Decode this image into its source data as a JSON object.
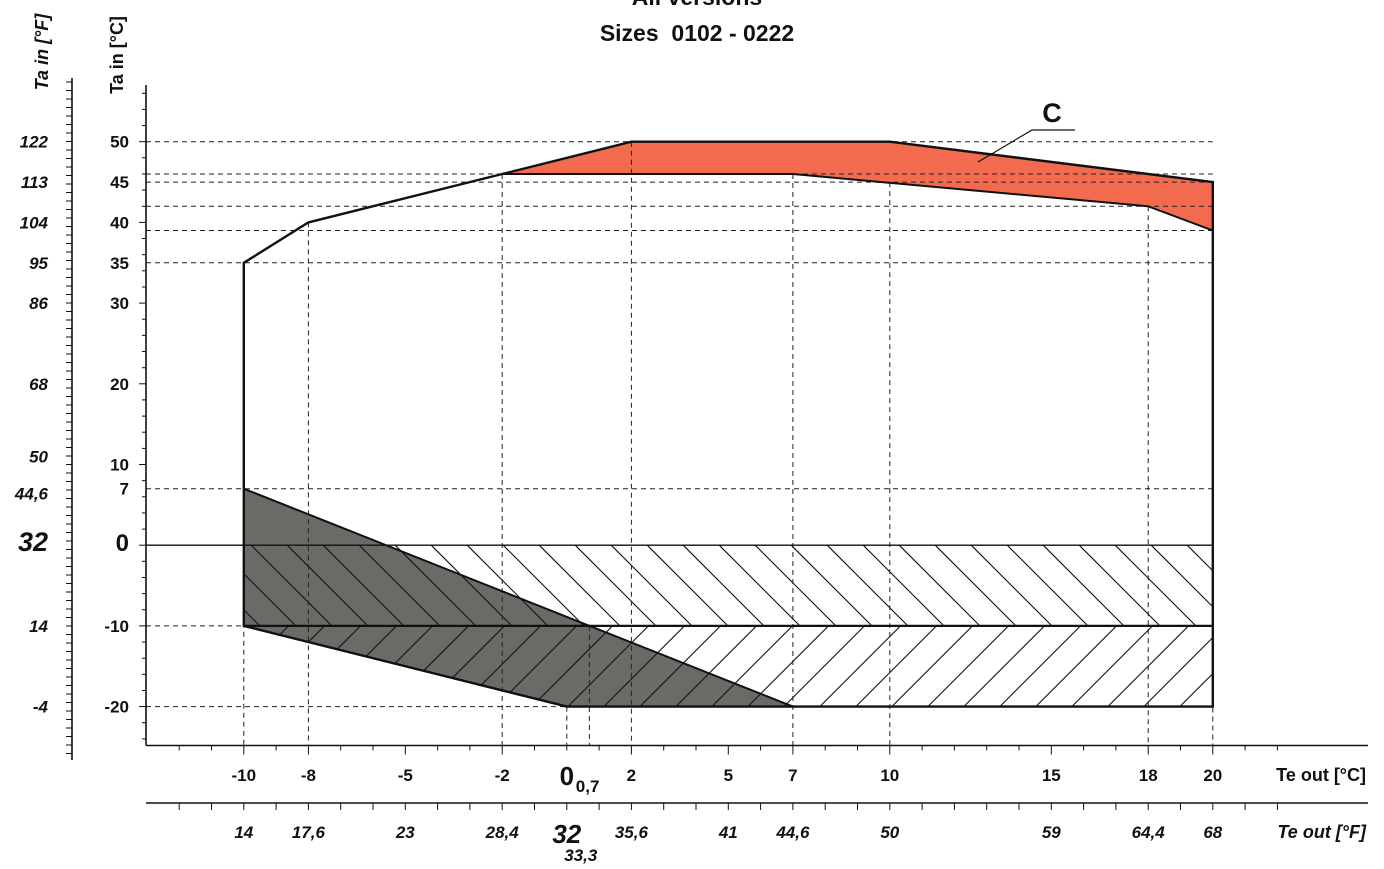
{
  "chart_data": {
    "type": "area",
    "title_line1": "All versions",
    "title_line2": "Sizes  0102 - 0222",
    "y_axis_c_label": "Ta in [°C]",
    "y_axis_f_label": "Ta in [°F]",
    "x_axis_c_label": "Te out [°C]",
    "x_axis_f_label": "Te out [°F]",
    "x_c_ticks": [
      "-10",
      "-8",
      "-5",
      "-2",
      "2",
      "5",
      "7",
      "10",
      "15",
      "18",
      "20"
    ],
    "x_c_ticks_values": [
      -10,
      -8,
      -5,
      -2,
      2,
      5,
      7,
      10,
      15,
      18,
      20
    ],
    "x_c_zero_label": "0",
    "x_c_zero_sub": "0,7",
    "x_f_ticks": [
      "14",
      "17,6",
      "23",
      "28,4",
      "35,6",
      "41",
      "44,6",
      "50",
      "59",
      "64,4",
      "68"
    ],
    "x_f_ticks_values": [
      -10,
      -8,
      -5,
      -2,
      2,
      5,
      7,
      10,
      15,
      18,
      20
    ],
    "x_f_32_label": "32",
    "x_f_333_label": "33,3",
    "y_c_ticks": [
      "50",
      "45",
      "40",
      "35",
      "30",
      "20",
      "10",
      "7",
      "0",
      "-10",
      "-20"
    ],
    "y_c_ticks_values": [
      50,
      45,
      40,
      35,
      30,
      20,
      10,
      7,
      0,
      -10,
      -20
    ],
    "y_f_ticks": [
      "122",
      "113",
      "104",
      "95",
      "86",
      "68",
      "50",
      "44,6",
      "32",
      "14",
      "-4"
    ],
    "y_f_ticks_values": [
      50,
      45,
      40,
      35,
      30,
      20,
      10,
      7,
      0,
      -10,
      -20
    ],
    "xlim": [
      -13,
      23
    ],
    "ylim": [
      -25,
      58
    ],
    "envelope_outline": [
      [
        -10,
        35
      ],
      [
        -8,
        40
      ],
      [
        -2,
        46
      ],
      [
        2,
        50
      ],
      [
        10,
        50
      ],
      [
        20,
        45
      ],
      [
        20,
        -20
      ],
      [
        7,
        -20
      ],
      [
        0,
        -20
      ],
      [
        -10,
        -10
      ],
      [
        -10,
        35
      ]
    ],
    "region_c_label": "C",
    "region_c_color": "#f26b4f",
    "region_c_polygon": [
      [
        -2,
        46
      ],
      [
        2,
        50
      ],
      [
        10,
        50
      ],
      [
        20,
        45
      ],
      [
        20,
        39
      ],
      [
        18,
        42
      ],
      [
        7,
        46
      ]
    ],
    "gray_region_color": "#6b6a66",
    "gray_region_polygon": [
      [
        -10,
        7
      ],
      [
        7,
        -20
      ],
      [
        0,
        -20
      ],
      [
        -10,
        -10
      ]
    ],
    "hatch_band_upper": [
      0,
      -10
    ],
    "hatch_band_lower": [
      -10,
      -20
    ],
    "hatch_lower_start_x": 0.7,
    "grid_dashed": true,
    "guide_lines": [
      {
        "x": -10,
        "y": 35
      },
      {
        "x": -8,
        "y": 40
      },
      {
        "x": -2,
        "y": 46
      },
      {
        "x": 2,
        "y": 50
      },
      {
        "x": 7,
        "y": 46
      },
      {
        "x": 10,
        "y": 45
      },
      {
        "x": 18,
        "y": 42
      },
      {
        "x": 20,
        "y": 39
      },
      {
        "x": 0,
        "y": -20
      },
      {
        "x": 0.7,
        "y": -10
      }
    ],
    "hline_levels": [
      50,
      46,
      45,
      42,
      39,
      35,
      7,
      -10,
      -20
    ]
  }
}
